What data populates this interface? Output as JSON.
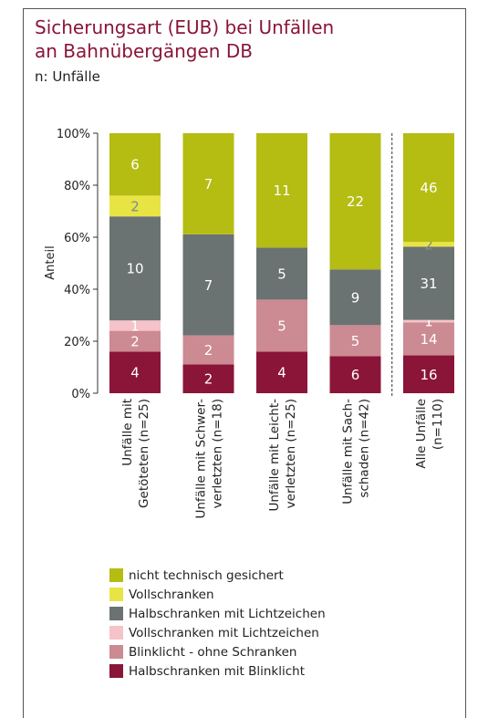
{
  "title_line1": "Sicherungsart (EUB) bei Unfällen",
  "title_line2": "an Bahnübergängen DB",
  "subtitle": "n: Unfälle",
  "chart_data": {
    "type": "bar",
    "stacked": true,
    "normalized": true,
    "ylabel": "Anteil",
    "ylim": [
      0,
      100
    ],
    "yticks": [
      "0%",
      "20%",
      "40%",
      "60%",
      "80%",
      "100%"
    ],
    "categories": [
      {
        "line1": "Unfälle mit",
        "line2": "Getöteten (n=25)"
      },
      {
        "line1": "Unfälle mit Schwer-",
        "line2": "verletzten (n=18)"
      },
      {
        "line1": "Unfälle mit Leicht-",
        "line2": "verletzten (n=25)"
      },
      {
        "line1": "Unfälle mit Sach-",
        "line2": "schaden (n=42)"
      },
      {
        "line1": "Alle Unfälle",
        "line2": "(n=110)"
      }
    ],
    "series": [
      {
        "name": "Halbschranken mit Blinklicht",
        "color": "#8a1538",
        "label_color": "#ffffff",
        "values": [
          4,
          2,
          4,
          6,
          16
        ]
      },
      {
        "name": "Blinklicht - ohne Schranken",
        "color": "#cc8a92",
        "label_color": "#ffffff",
        "values": [
          2,
          2,
          5,
          5,
          14
        ]
      },
      {
        "name": "Vollschranken mit Lichtzeichen",
        "color": "#f5c3c9",
        "label_color": "#ffffff",
        "values": [
          1,
          0,
          0,
          0,
          1
        ]
      },
      {
        "name": "Halbschranken mit Lichtzeichen",
        "color": "#6b7272",
        "label_color": "#ffffff",
        "values": [
          10,
          7,
          5,
          9,
          31
        ]
      },
      {
        "name": "Vollschranken",
        "color": "#e8e444",
        "label_color": "#7b8c8c",
        "values": [
          2,
          0,
          0,
          0,
          2
        ]
      },
      {
        "name": "nicht technisch gesichert",
        "color": "#b5bc12",
        "label_color": "#ffffff",
        "values": [
          6,
          7,
          11,
          22,
          46
        ]
      }
    ],
    "separator_before_category": 4,
    "legend_order": [
      5,
      4,
      3,
      2,
      1,
      0
    ],
    "legend_placement": "bottom"
  }
}
